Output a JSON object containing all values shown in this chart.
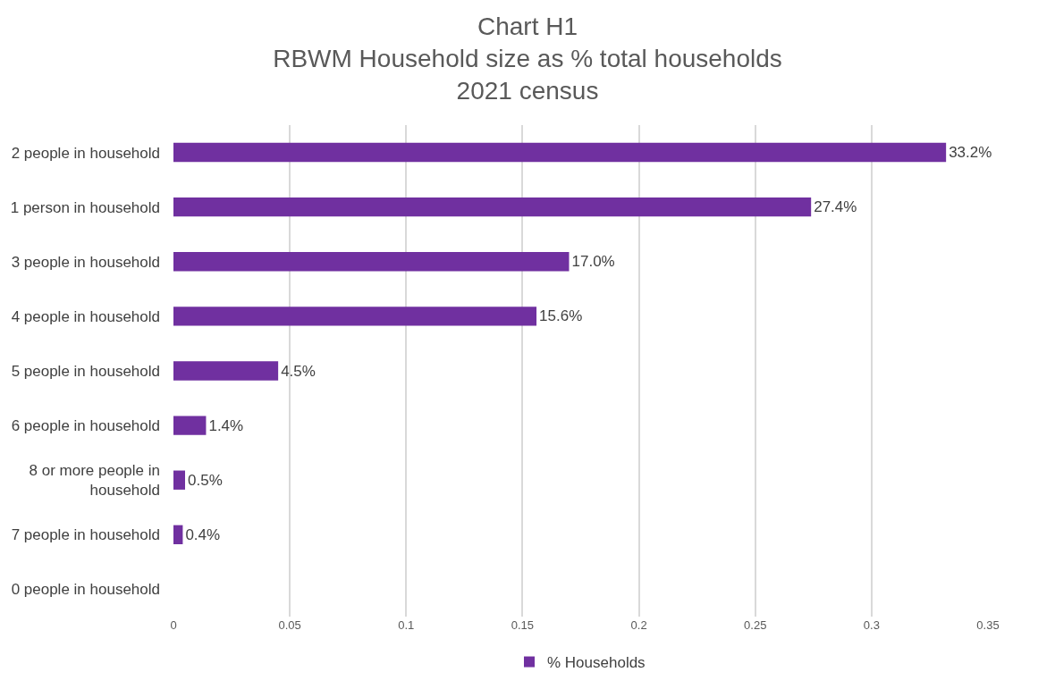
{
  "chart_data": {
    "type": "bar",
    "orientation": "horizontal",
    "title": "Chart H1\nRBWM Household size as % total households\n2021 census",
    "categories": [
      "2 people in household",
      "1 person in household",
      "3 people in household",
      "4 people in household",
      "5 people in household",
      "6 people in household",
      "8 or more people in household",
      "7 people in household",
      "0 people in household"
    ],
    "series": [
      {
        "name": "% Households",
        "color": "#7030a0",
        "values": [
          0.332,
          0.274,
          0.17,
          0.156,
          0.045,
          0.014,
          0.005,
          0.004,
          0
        ]
      }
    ],
    "value_labels": [
      "33.2%",
      "27.4%",
      "17.0%",
      "15.6%",
      "4.5%",
      "1.4%",
      "0.5%",
      "0.4%",
      null
    ],
    "xlim": [
      0,
      0.35
    ],
    "xticks": [
      0,
      0.05,
      0.1,
      0.15,
      0.2,
      0.25,
      0.3,
      0.35
    ],
    "grid": "x",
    "legend": "bottom"
  }
}
